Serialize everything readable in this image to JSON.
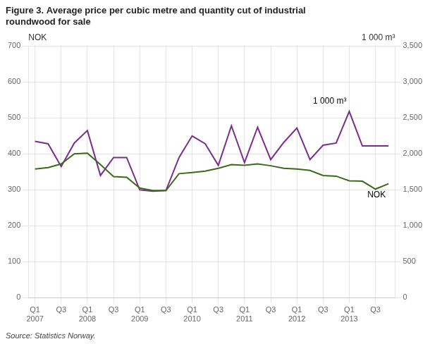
{
  "chart_data": {
    "type": "line",
    "title": [
      "Figure 3. Average price per cubic metre and quantity cut of industrial",
      "roundwood for sale"
    ],
    "ylabel": "NOK",
    "y2label": "1 000 m³",
    "source": "Source: Statistics Norway.",
    "annotations": [
      {
        "text": "1 000 m³",
        "axis": "y2"
      },
      {
        "text": "NOK",
        "axis": "y"
      }
    ],
    "categories": [
      "Q1\n2007",
      null,
      "Q3",
      null,
      "Q1\n2008",
      null,
      "Q3",
      null,
      "Q1\n2009",
      null,
      "Q3",
      null,
      "Q1\n2010",
      null,
      "Q3",
      null,
      "Q1\n2011",
      null,
      "Q3",
      null,
      "Q1\n2012",
      null,
      "Q3",
      null,
      "Q1\n2013",
      null,
      "Q3",
      null
    ],
    "series": [
      {
        "color": "#3A6B1A",
        "axis": "y",
        "values": [
          358,
          362,
          372,
          400,
          402,
          370,
          337,
          335,
          305,
          298,
          298,
          345,
          348,
          352,
          360,
          370,
          368,
          372,
          367,
          360,
          358,
          354,
          340,
          338,
          325,
          324,
          302,
          317
        ]
      },
      {
        "color": "#7B2D8B",
        "axis": "y2",
        "values": [
          2175,
          2140,
          1825,
          2150,
          2325,
          1700,
          1950,
          1950,
          1500,
          1480,
          1490,
          1950,
          2250,
          2140,
          1840,
          2390,
          1880,
          2370,
          1920,
          2160,
          2360,
          1920,
          2120,
          2150,
          2590,
          2110,
          2110,
          2110
        ]
      }
    ],
    "ylim": [
      0,
      700
    ],
    "yticks": [
      0,
      100,
      200,
      300,
      400,
      500,
      600,
      700
    ],
    "y2lim": [
      0,
      3500
    ],
    "y2ticks": [
      0,
      500,
      1000,
      1500,
      2000,
      2500,
      3000,
      3500
    ],
    "grid": true
  }
}
